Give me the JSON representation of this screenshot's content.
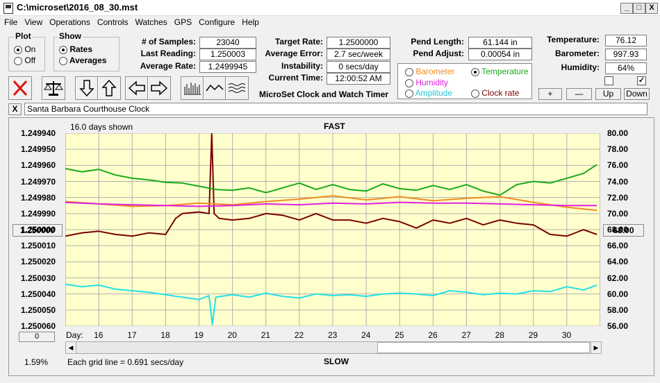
{
  "window": {
    "title": "C:\\microset\\2016_08_30.mst",
    "minimize": "_",
    "maximize": "□",
    "close": "X"
  },
  "menu": [
    "File",
    "View",
    "Operations",
    "Controls",
    "Watches",
    "GPS",
    "Configure",
    "Help"
  ],
  "plot_group": {
    "label": "Plot",
    "on": "On",
    "off": "Off",
    "selected": "On"
  },
  "show_group": {
    "label": "Show",
    "rates": "Rates",
    "averages": "Averages",
    "selected": "Rates"
  },
  "stats": {
    "samples_label": "# of Samples:",
    "samples": "23040",
    "last_reading_label": "Last Reading:",
    "last_reading": "1.250003",
    "average_rate_label": "Average Rate:",
    "average_rate": "1.2499945",
    "target_rate_label": "Target Rate:",
    "target_rate": "1.2500000",
    "average_error_label": "Average Error:",
    "average_error": "2.7 sec/week",
    "instability_label": "Instability:",
    "instability": "0 secs/day",
    "current_time_label": "Current Time:",
    "current_time": "12:00:52 AM",
    "pend_length_label": "Pend Length:",
    "pend_length": "61.144 in",
    "pend_adjust_label": "Pend Adjust:",
    "pend_adjust": "0.00054 in",
    "temperature_label": "Temperature:",
    "temperature": "76.12",
    "barometer_label": "Barometer:",
    "barometer": "997.93",
    "humidity_label": "Humidity:",
    "humidity": "64%"
  },
  "app_name": "MicroSet Clock and Watch Timer",
  "overlay_options": {
    "barometer": "Barometer",
    "temperature": "Temperature",
    "humidity": "Humidity",
    "amplitude": "Amplitude",
    "clock_rate": "Clock rate",
    "selected": "Temperature"
  },
  "right_buttons": {
    "plus": "+",
    "minus": "—",
    "up": "Up",
    "down": "Down"
  },
  "checkboxes": [
    {
      "checked": false
    },
    {
      "checked": true
    }
  ],
  "clock_name_close": "X",
  "clock_name": "Santa Barbara Courthouse Clock",
  "colors": {
    "plot_bg": "#ffffcc",
    "rate": "#7a0000",
    "temperature": "#1aa81a",
    "barometer": "#f08c1e",
    "humidity": "#e020e0",
    "amplitude": "#22e0e8"
  },
  "chart_data": {
    "type": "line",
    "top_label": "FAST",
    "bottom_label": "SLOW",
    "days_shown": "16.0 days shown",
    "grid_note": "Each grid line = 0.691 secs/day",
    "percent": "1.59%",
    "left_axis": {
      "ticks": [
        "1.249940",
        "1.249950",
        "1.249960",
        "1.249970",
        "1.249980",
        "1.249990",
        "1.250000",
        "1.250010",
        "1.250020",
        "1.250030",
        "1.250040",
        "1.250050",
        "1.250060"
      ],
      "center_button": "1.250000",
      "bottom_button": "0",
      "range": [
        1.24994,
        1.25006
      ]
    },
    "right_axis": {
      "ticks": [
        "80.00",
        "78.00",
        "76.00",
        "74.00",
        "72.00",
        "70.00",
        "68.00",
        "66.00",
        "64.00",
        "62.00",
        "60.00",
        "58.00",
        "56.00"
      ],
      "center_button": "68.00",
      "range": [
        56,
        80
      ]
    },
    "x_axis": {
      "prefix": "Day:",
      "days": [
        "16",
        "17",
        "18",
        "19",
        "20",
        "21",
        "22",
        "23",
        "24",
        "25",
        "26",
        "27",
        "28",
        "29",
        "30"
      ],
      "range": [
        15.0,
        31.0
      ]
    },
    "series": [
      {
        "name": "Rate",
        "axis": "left",
        "color": "#7a0000",
        "x": [
          15.0,
          15.5,
          16.0,
          16.5,
          17.0,
          17.5,
          18.0,
          18.3,
          18.5,
          19.0,
          19.3,
          19.38,
          19.45,
          19.6,
          20.0,
          20.5,
          21.0,
          21.5,
          22.0,
          22.5,
          23.0,
          23.5,
          24.0,
          24.5,
          25.0,
          25.5,
          26.0,
          26.5,
          27.0,
          27.5,
          28.0,
          28.5,
          29.0,
          29.5,
          30.0,
          30.5,
          30.9
        ],
        "y": [
          1.250004,
          1.250002,
          1.250001,
          1.250003,
          1.250004,
          1.250002,
          1.250003,
          1.249993,
          1.24999,
          1.249989,
          1.24999,
          1.24994,
          1.24999,
          1.249993,
          1.249994,
          1.249993,
          1.24999,
          1.249991,
          1.249994,
          1.24999,
          1.249994,
          1.249994,
          1.249996,
          1.249993,
          1.249995,
          1.249999,
          1.249994,
          1.249996,
          1.249993,
          1.249997,
          1.249994,
          1.249996,
          1.249997,
          1.250003,
          1.250004,
          1.25,
          1.250003
        ]
      },
      {
        "name": "Temperature",
        "axis": "right",
        "color": "#1aa81a",
        "x": [
          15.0,
          15.5,
          16.0,
          16.5,
          17.0,
          17.5,
          18.0,
          18.5,
          19.0,
          19.5,
          20.0,
          20.5,
          21.0,
          21.5,
          22.0,
          22.5,
          23.0,
          23.5,
          24.0,
          24.5,
          25.0,
          25.5,
          26.0,
          26.5,
          27.0,
          27.5,
          28.0,
          28.5,
          29.0,
          29.5,
          30.0,
          30.5,
          30.9
        ],
        "y": [
          75.6,
          75.2,
          75.5,
          74.8,
          74.4,
          74.2,
          73.9,
          73.8,
          73.4,
          73.0,
          72.9,
          73.2,
          72.6,
          73.2,
          73.8,
          73.0,
          73.6,
          73.0,
          72.8,
          73.7,
          73.1,
          72.9,
          73.5,
          73.0,
          73.6,
          72.8,
          72.3,
          73.6,
          74.0,
          73.8,
          74.4,
          75.0,
          76.1
        ]
      },
      {
        "name": "Barometer",
        "axis": "right",
        "color": "#f08c1e",
        "x": [
          15.0,
          16.0,
          17.0,
          18.0,
          19.0,
          20.0,
          21.0,
          22.0,
          23.0,
          24.0,
          25.0,
          26.0,
          27.0,
          28.0,
          29.0,
          30.0,
          30.9
        ],
        "y": [
          71.5,
          71.2,
          70.9,
          71.0,
          71.3,
          71.1,
          71.5,
          71.8,
          72.2,
          71.7,
          72.1,
          71.6,
          71.9,
          72.1,
          71.4,
          70.8,
          70.4
        ]
      },
      {
        "name": "Humidity",
        "axis": "right",
        "color": "#e020e0",
        "x": [
          15.0,
          16.0,
          17.0,
          18.0,
          19.0,
          20.0,
          21.0,
          22.0,
          23.0,
          24.0,
          25.0,
          26.0,
          27.0,
          28.0,
          29.0,
          30.0,
          30.9
        ],
        "y": [
          71.4,
          71.2,
          71.1,
          71.0,
          70.9,
          71.0,
          71.2,
          71.1,
          71.3,
          71.2,
          71.4,
          71.3,
          71.3,
          71.2,
          71.1,
          71.0,
          71.0
        ]
      },
      {
        "name": "Amplitude",
        "axis": "right",
        "color": "#22e0e8",
        "x": [
          15.0,
          15.5,
          16.0,
          16.5,
          17.0,
          17.5,
          18.0,
          18.5,
          19.0,
          19.3,
          19.4,
          19.5,
          20.0,
          20.5,
          21.0,
          21.5,
          22.0,
          22.5,
          23.0,
          23.5,
          24.0,
          24.5,
          25.0,
          25.5,
          26.0,
          26.5,
          27.0,
          27.5,
          28.0,
          28.5,
          29.0,
          29.5,
          30.0,
          30.5,
          30.9
        ],
        "y": [
          61.2,
          60.9,
          61.1,
          60.6,
          60.4,
          60.2,
          59.9,
          59.6,
          59.3,
          59.8,
          56.2,
          59.6,
          59.9,
          59.6,
          60.1,
          59.7,
          59.5,
          60.0,
          59.8,
          59.9,
          59.7,
          60.0,
          60.1,
          60.0,
          59.8,
          60.4,
          60.2,
          59.9,
          60.1,
          60.0,
          60.4,
          60.3,
          60.9,
          60.5,
          61.1
        ]
      }
    ]
  }
}
